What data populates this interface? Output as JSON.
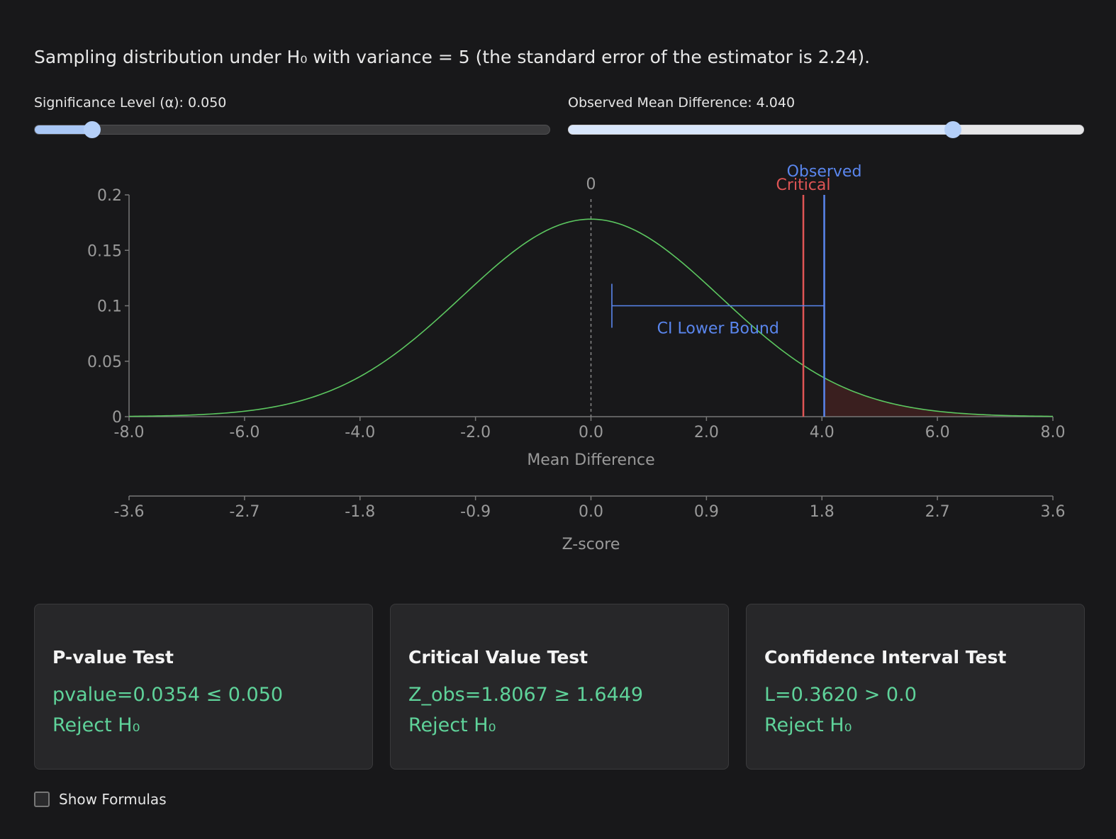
{
  "description": "Sampling distribution under H₀ with variance = 5 (the standard error of the estimator is 2.24).",
  "sliders": {
    "alpha": {
      "label": "Significance Level (α): 0.050",
      "fraction": 0.111
    },
    "observed": {
      "label": "Observed Mean Difference: 4.040",
      "fraction": 0.745
    }
  },
  "chart_data": {
    "type": "line",
    "xlabel": "Mean Difference",
    "x2label": "Z-score",
    "xlim": [
      -8,
      8
    ],
    "ylim": [
      0,
      0.2
    ],
    "x_ticks": [
      "-8.0",
      "-6.0",
      "-4.0",
      "-2.0",
      "0.0",
      "2.0",
      "4.0",
      "6.0",
      "8.0"
    ],
    "z_ticks": [
      "-3.6",
      "-2.7",
      "-1.8",
      "-0.9",
      "0.0",
      "0.9",
      "1.8",
      "2.7",
      "3.6"
    ],
    "y_ticks": [
      "0",
      "0.05",
      "0.1",
      "0.15",
      "0.2"
    ],
    "y_tick_values": [
      0,
      0.05,
      0.1,
      0.15,
      0.2
    ],
    "mean": 0,
    "std_error": 2.24,
    "critical_value": 3.678,
    "observed_value": 4.04,
    "ci_lower": 0.362,
    "ci_bar_y": 0.1,
    "zero_label": "0",
    "critical_label": "Critical",
    "observed_label": "Observed",
    "ci_label": "CI Lower Bound",
    "colors": {
      "curve": "#5cc760",
      "critical": "#e05555",
      "observed": "#5a86ee",
      "shade": "#3a1f1f",
      "axis": "#777777",
      "tick_text": "#9a9a9a"
    }
  },
  "cards": [
    {
      "title": "P-value Test",
      "line1": "pvalue=0.0354 ≤ 0.050",
      "line2": "Reject H₀"
    },
    {
      "title": "Critical Value Test",
      "line1": "Z_obs=1.8067 ≥ 1.6449",
      "line2": "Reject H₀"
    },
    {
      "title": "Confidence Interval Test",
      "line1": "L=0.3620 > 0.0",
      "line2": "Reject H₀"
    }
  ],
  "show_formulas": {
    "label": "Show Formulas",
    "checked": false
  }
}
